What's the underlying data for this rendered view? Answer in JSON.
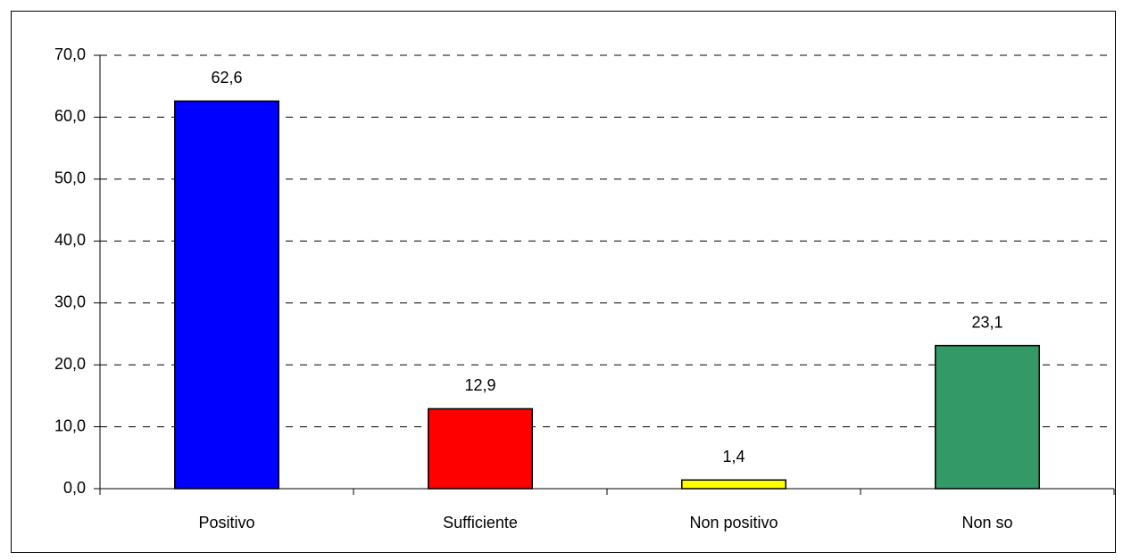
{
  "chart_data": {
    "type": "bar",
    "categories": [
      "Positivo",
      "Sufficiente",
      "Non positivo",
      "Non so"
    ],
    "values": [
      62.6,
      12.9,
      1.4,
      23.1
    ],
    "value_labels": [
      "62,6",
      "12,9",
      "1,4",
      "23,1"
    ],
    "colors": [
      "#0000ff",
      "#ff0000",
      "#ffff00",
      "#339966"
    ],
    "ylim": [
      0,
      70
    ],
    "yticks": [
      {
        "value": 0,
        "label": "0,0"
      },
      {
        "value": 10,
        "label": "10,0"
      },
      {
        "value": 20,
        "label": "20,0"
      },
      {
        "value": 30,
        "label": "30,0"
      },
      {
        "value": 40,
        "label": "40,0"
      },
      {
        "value": 50,
        "label": "50,0"
      },
      {
        "value": 60,
        "label": "60,0"
      },
      {
        "value": 70,
        "label": "70,0"
      }
    ],
    "grid": true
  }
}
